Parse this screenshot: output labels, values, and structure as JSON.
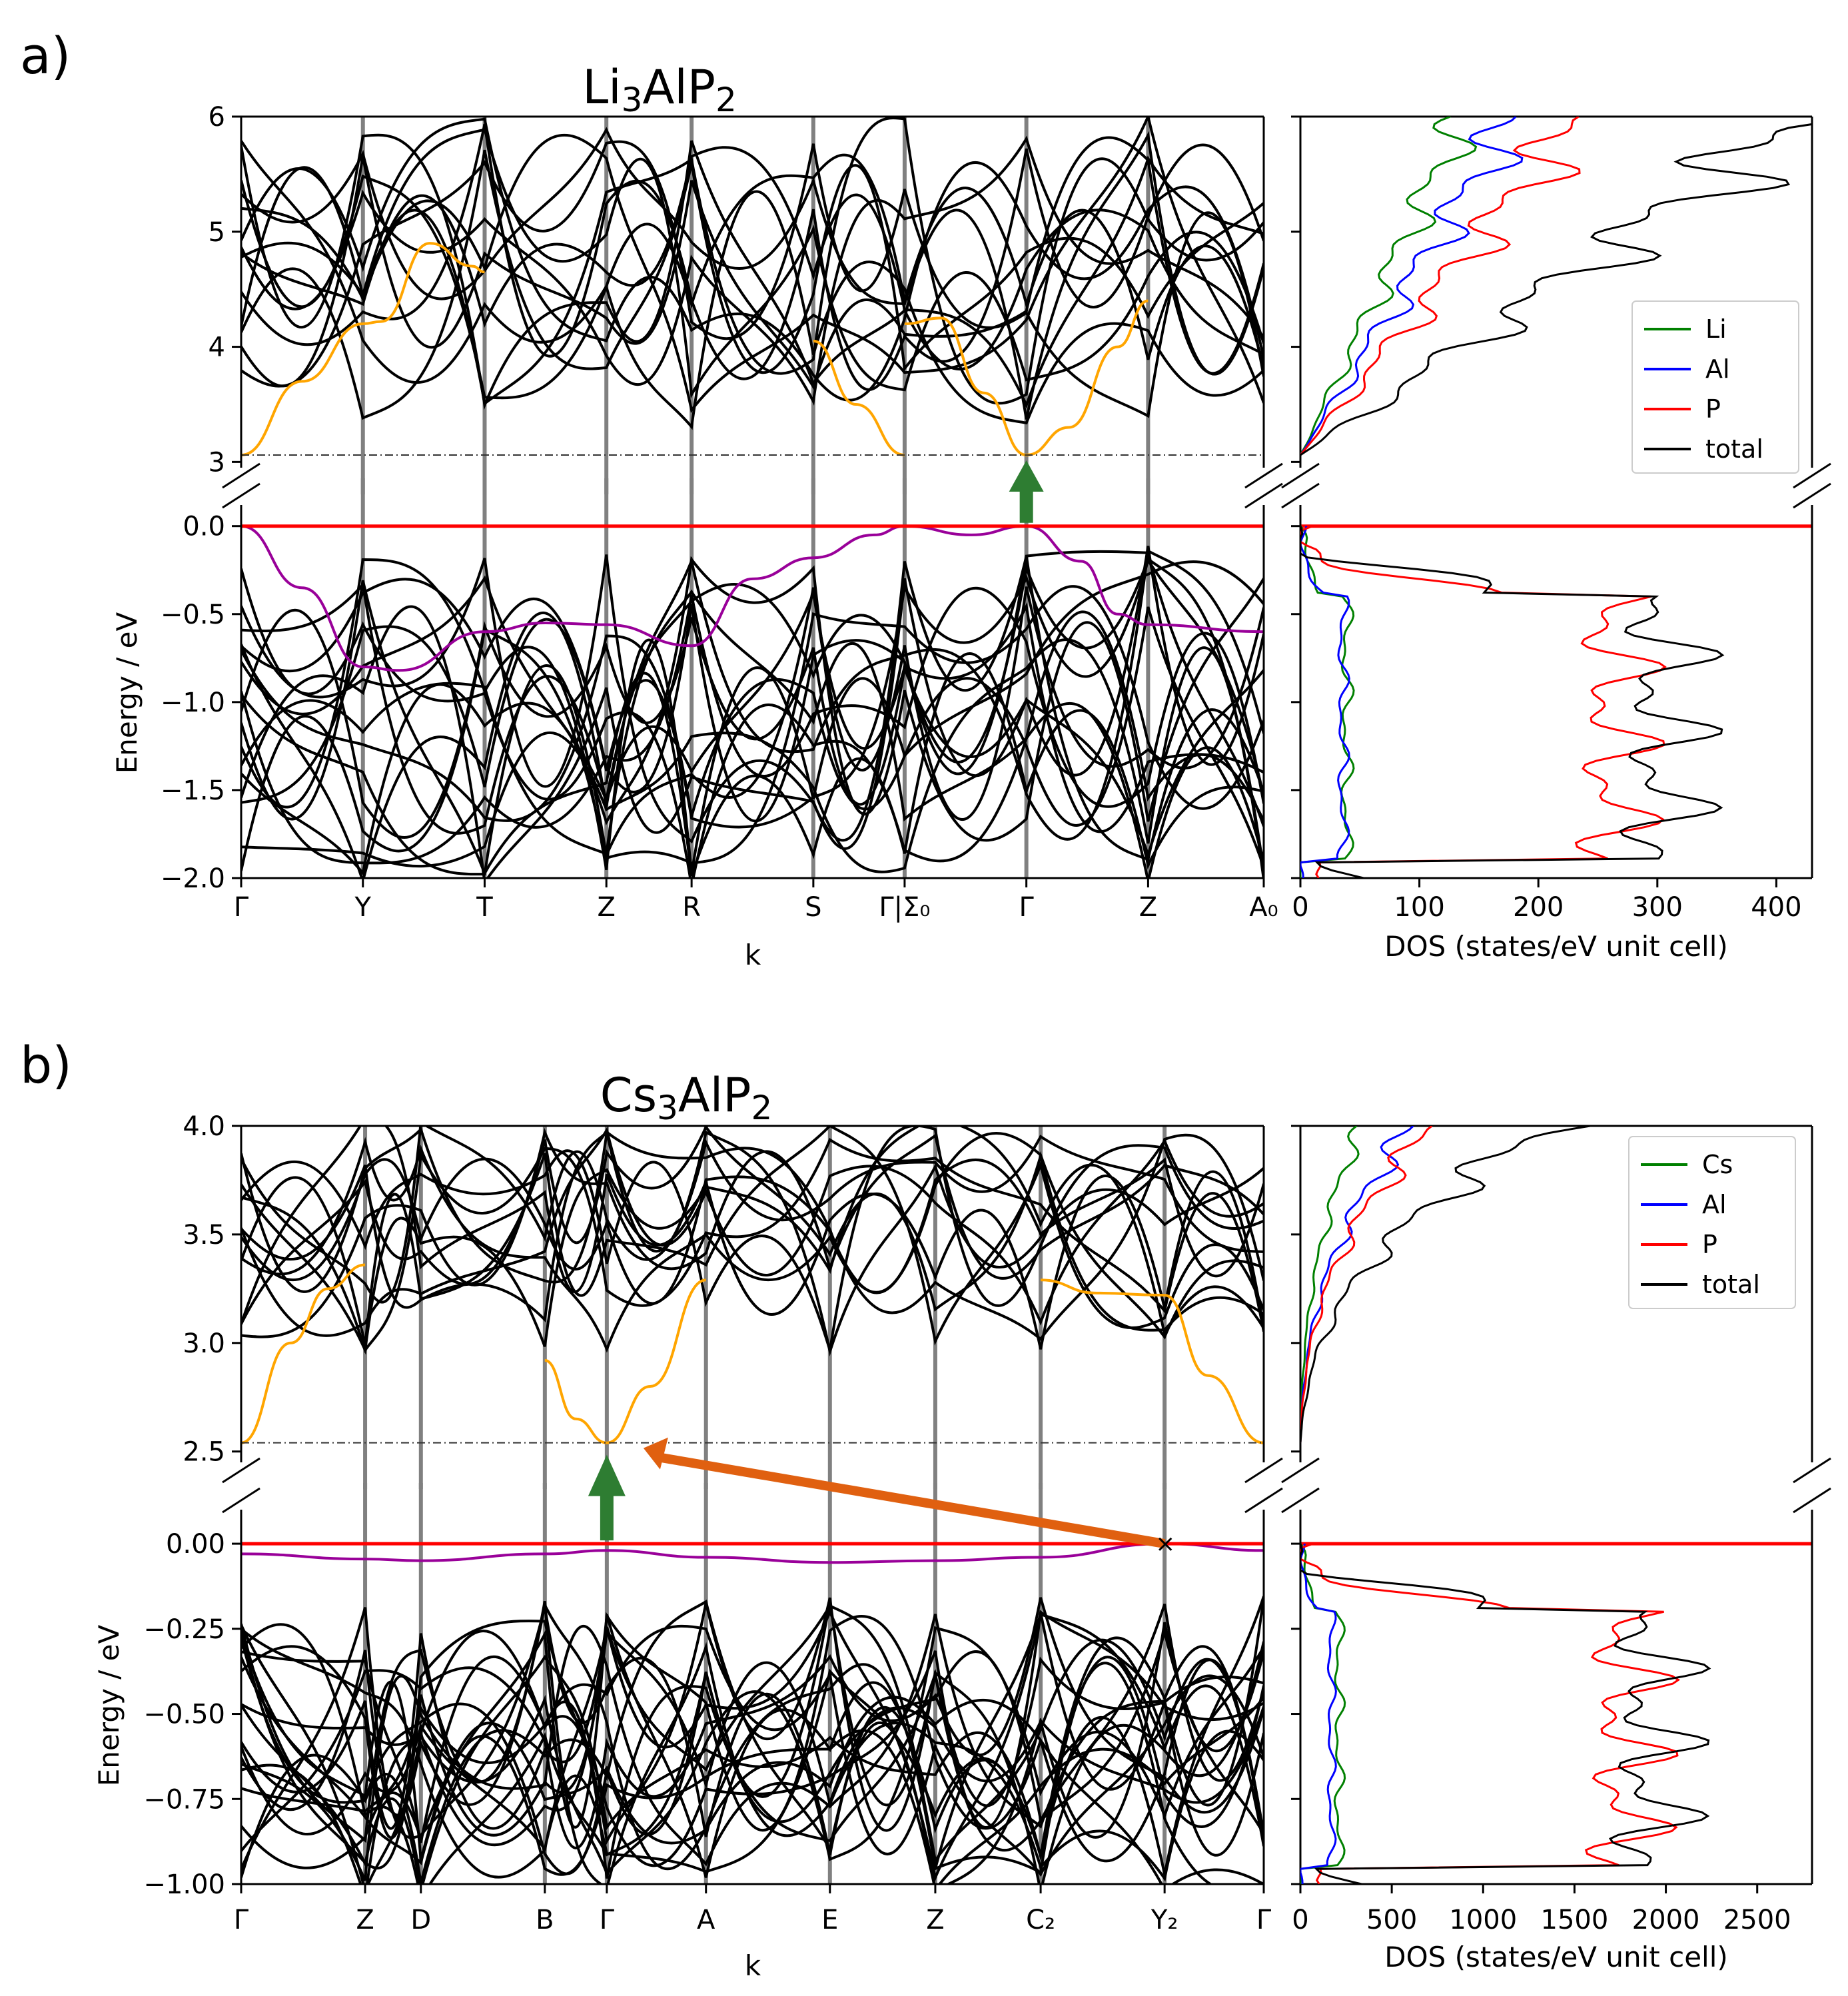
{
  "figure": {
    "panels": [
      {
        "label": "a)",
        "title": "Li",
        "title_sub1": "3",
        "title_mid": "AlP",
        "title_sub2": "2",
        "xlabel": "k",
        "ylabel": "Energy / eV",
        "dos_xlabel": "DOS (states/eV unit cell)"
      },
      {
        "label": "b)",
        "title": "Cs",
        "title_sub1": "3",
        "title_mid": "AlP",
        "title_sub2": "2",
        "xlabel": "k",
        "ylabel": "Energy / eV",
        "dos_xlabel": "DOS (states/eV unit cell)"
      }
    ]
  },
  "chart_data": [
    {
      "type": "line",
      "name": "Li3AlP2 band structure",
      "kpath": [
        "Γ",
        "Y",
        "T",
        "Z",
        "R",
        "S",
        "Γ|Σ₀",
        "Γ",
        "Z",
        "A₀"
      ],
      "k_positions": [
        0,
        1,
        2,
        3,
        3.7,
        4.7,
        5.45,
        6.45,
        7.45,
        8.4
      ],
      "conduction_ylim": [
        2.95,
        6
      ],
      "conduction_yticks": [
        "3",
        "4",
        "5",
        "6"
      ],
      "valence_ylim": [
        -2.0,
        0.12
      ],
      "valence_yticks": [
        "0.0",
        "-0.5",
        "-1.0",
        "-1.5",
        "-2.0"
      ],
      "cbm": 3.06,
      "vbm": 0.0,
      "lowest_conduction_band": [
        {
          "k": 0,
          "E": 3.06
        },
        {
          "k": 0.5,
          "E": 3.7
        },
        {
          "k": 1,
          "E": 4.2
        },
        {
          "k": 1.15,
          "E": 4.22
        },
        {
          "k": 1.55,
          "E": 4.9
        },
        {
          "k": 1.9,
          "E": 4.7
        },
        {
          "k": 2,
          "E": 4.65
        }
      ],
      "lowest_conduction_band_2": [
        {
          "k": 4.7,
          "E": 4.05
        },
        {
          "k": 5.05,
          "E": 3.5
        },
        {
          "k": 5.45,
          "E": 3.06
        }
      ],
      "lowest_conduction_band_3": [
        {
          "k": 5.45,
          "E": 4.2
        },
        {
          "k": 5.75,
          "E": 4.25
        },
        {
          "k": 6.1,
          "E": 3.6
        },
        {
          "k": 6.45,
          "E": 3.06
        },
        {
          "k": 6.8,
          "E": 3.3
        },
        {
          "k": 7.2,
          "E": 4.0
        },
        {
          "k": 7.45,
          "E": 4.4
        }
      ],
      "highest_valence_band": [
        {
          "k": 0,
          "E": 0.0
        },
        {
          "k": 0.5,
          "E": -0.35
        },
        {
          "k": 1,
          "E": -0.8
        },
        {
          "k": 1.3,
          "E": -0.82
        },
        {
          "k": 2,
          "E": -0.6
        },
        {
          "k": 2.5,
          "E": -0.55
        },
        {
          "k": 3,
          "E": -0.56
        },
        {
          "k": 3.7,
          "E": -0.68
        },
        {
          "k": 4.2,
          "E": -0.3
        },
        {
          "k": 4.7,
          "E": -0.18
        },
        {
          "k": 5.2,
          "E": -0.05
        },
        {
          "k": 5.45,
          "E": 0.0
        },
        {
          "k": 6.0,
          "E": -0.05
        },
        {
          "k": 6.45,
          "E": 0.0
        },
        {
          "k": 6.9,
          "E": -0.2
        },
        {
          "k": 7.2,
          "E": -0.5
        },
        {
          "k": 7.45,
          "E": -0.56
        },
        {
          "k": 8.4,
          "E": -0.6
        }
      ],
      "dos": {
        "xlim": [
          0,
          430
        ],
        "xticks": [
          "0",
          "100",
          "200",
          "300",
          "400"
        ],
        "legend": [
          "Li",
          "Al",
          "P",
          "total"
        ],
        "legend_position": "right",
        "colors": {
          "Li": "#008000",
          "Al": "#0000ff",
          "P": "#ff0000",
          "total": "#000000"
        }
      }
    },
    {
      "type": "line",
      "name": "Cs3AlP2 band structure",
      "kpath": [
        "Γ",
        "Z",
        "D",
        "B",
        "Γ",
        "A",
        "E",
        "Z",
        "C₂",
        "Y₂",
        "Γ"
      ],
      "k_positions": [
        0,
        1,
        1.45,
        2.45,
        2.95,
        3.75,
        4.75,
        5.6,
        6.45,
        7.45,
        8.25
      ],
      "conduction_ylim": [
        2.45,
        4.0
      ],
      "conduction_yticks": [
        "2.5",
        "3.0",
        "3.5",
        "4.0"
      ],
      "valence_ylim": [
        -1.0,
        0.1
      ],
      "valence_yticks": [
        "0.00",
        "-0.25",
        "-0.50",
        "-0.75",
        "-1.00"
      ],
      "cbm": 2.54,
      "vbm": 0.0,
      "lowest_conduction_band": [
        {
          "k": 0,
          "E": 2.54
        },
        {
          "k": 0.4,
          "E": 3.0
        },
        {
          "k": 0.7,
          "E": 3.25
        },
        {
          "k": 1,
          "E": 3.36
        }
      ],
      "lowest_conduction_band_2": [
        {
          "k": 2.45,
          "E": 2.92
        },
        {
          "k": 2.7,
          "E": 2.65
        },
        {
          "k": 2.95,
          "E": 2.54
        },
        {
          "k": 3.3,
          "E": 2.8
        },
        {
          "k": 3.75,
          "E": 3.29
        }
      ],
      "lowest_conduction_band_3": [
        {
          "k": 6.45,
          "E": 3.29
        },
        {
          "k": 6.9,
          "E": 3.23
        },
        {
          "k": 7.45,
          "E": 3.22
        },
        {
          "k": 7.8,
          "E": 2.85
        },
        {
          "k": 8.25,
          "E": 2.54
        }
      ],
      "highest_valence_band": [
        {
          "k": 0,
          "E": -0.03
        },
        {
          "k": 1,
          "E": -0.045
        },
        {
          "k": 1.45,
          "E": -0.05
        },
        {
          "k": 2.45,
          "E": -0.03
        },
        {
          "k": 2.95,
          "E": -0.02
        },
        {
          "k": 3.75,
          "E": -0.04
        },
        {
          "k": 4.75,
          "E": -0.055
        },
        {
          "k": 5.6,
          "E": -0.05
        },
        {
          "k": 6.45,
          "E": -0.04
        },
        {
          "k": 7.45,
          "E": 0.0
        },
        {
          "k": 8.25,
          "E": -0.02
        }
      ],
      "dos": {
        "xlim": [
          0,
          2800
        ],
        "xticks": [
          "0",
          "500",
          "1000",
          "1500",
          "2000",
          "2500"
        ],
        "legend": [
          "Cs",
          "Al",
          "P",
          "total"
        ],
        "legend_position": "top-right",
        "colors": {
          "Cs": "#008000",
          "Al": "#0000ff",
          "P": "#ff0000",
          "total": "#000000"
        }
      }
    }
  ]
}
